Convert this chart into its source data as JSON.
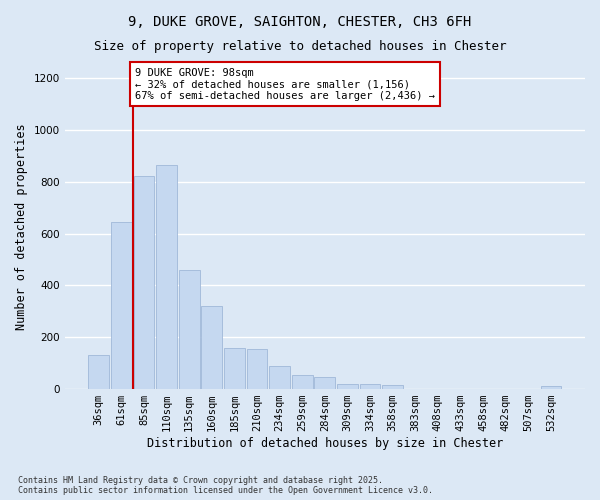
{
  "title": "9, DUKE GROVE, SAIGHTON, CHESTER, CH3 6FH",
  "subtitle": "Size of property relative to detached houses in Chester",
  "xlabel": "Distribution of detached houses by size in Chester",
  "ylabel": "Number of detached properties",
  "categories": [
    "36sqm",
    "61sqm",
    "85sqm",
    "110sqm",
    "135sqm",
    "160sqm",
    "185sqm",
    "210sqm",
    "234sqm",
    "259sqm",
    "284sqm",
    "309sqm",
    "334sqm",
    "358sqm",
    "383sqm",
    "408sqm",
    "433sqm",
    "458sqm",
    "482sqm",
    "507sqm",
    "532sqm"
  ],
  "values": [
    130,
    645,
    820,
    865,
    460,
    320,
    160,
    155,
    90,
    55,
    45,
    20,
    20,
    15,
    0,
    0,
    0,
    0,
    0,
    0,
    10
  ],
  "bar_color": "#c5d8f0",
  "bar_edge_color": "#a0b8d8",
  "background_color": "#dce8f5",
  "grid_color": "#ffffff",
  "vline_x": 1.5,
  "vline_color": "#cc0000",
  "annotation_text": "9 DUKE GROVE: 98sqm\n← 32% of detached houses are smaller (1,156)\n67% of semi-detached houses are larger (2,436) →",
  "annotation_box_color": "#cc0000",
  "ylim": [
    0,
    1250
  ],
  "yticks": [
    0,
    200,
    400,
    600,
    800,
    1000,
    1200
  ],
  "footnote": "Contains HM Land Registry data © Crown copyright and database right 2025.\nContains public sector information licensed under the Open Government Licence v3.0.",
  "title_fontsize": 10,
  "subtitle_fontsize": 9,
  "axis_label_fontsize": 8.5,
  "tick_fontsize": 7.5,
  "annotation_fontsize": 7.5
}
